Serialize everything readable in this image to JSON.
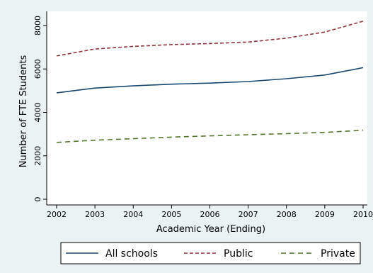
{
  "chart_data": {
    "type": "line",
    "title": "",
    "xlabel": "Academic Year (Ending)",
    "ylabel": "Number of FTE Students",
    "x": [
      2002,
      2003,
      2004,
      2005,
      2006,
      2007,
      2008,
      2009,
      2010
    ],
    "xlim": [
      2002,
      2010
    ],
    "ylim": [
      0,
      8000
    ],
    "xticks": [
      "2002",
      "2003",
      "2004",
      "2005",
      "2006",
      "2007",
      "2008",
      "2009",
      "2010"
    ],
    "yticks": [
      "0",
      "2000",
      "4000",
      "6000",
      "8000"
    ],
    "grid": false,
    "legend_position": "bottom",
    "series": [
      {
        "name": "All schools",
        "values": [
          4900,
          5120,
          5220,
          5300,
          5350,
          5420,
          5550,
          5720,
          6060
        ],
        "color": "#1a476f",
        "dash": "solid"
      },
      {
        "name": "Public",
        "values": [
          6600,
          6920,
          7040,
          7120,
          7170,
          7240,
          7420,
          7700,
          8200
        ],
        "color": "#90353b",
        "dash": "dashed"
      },
      {
        "name": "Private",
        "values": [
          2620,
          2720,
          2790,
          2860,
          2920,
          2970,
          3020,
          3080,
          3180
        ],
        "color": "#55752f",
        "dash": "longdash"
      }
    ]
  }
}
